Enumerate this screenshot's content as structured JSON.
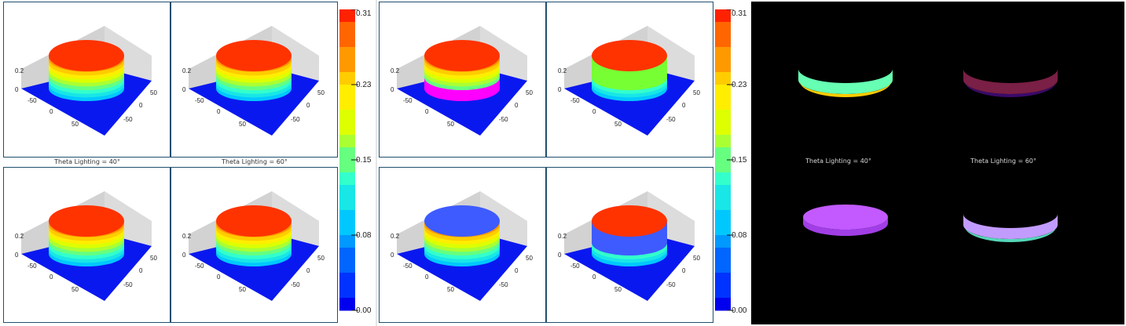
{
  "captions": {
    "left": "Theta Lighting = 40°",
    "right": "Theta Lighting = 60°"
  },
  "chart_data": [
    {
      "type": "surface3d",
      "panel": "group-1",
      "subplots": [
        "top-left",
        "top-right",
        "bottom-left",
        "bottom-right"
      ],
      "z_ticks": [
        "0",
        "0.2"
      ],
      "x_ticks": [
        "-50",
        "0",
        "50"
      ],
      "y_ticks": [
        "50",
        "0",
        "-50"
      ],
      "colorbar": {
        "ticks": [
          "0.31",
          "0.23",
          "0.15",
          "0.08",
          "0.00"
        ],
        "range": [
          0,
          0.31
        ]
      }
    },
    {
      "type": "surface3d",
      "panel": "group-2",
      "subplots": [
        "top-left",
        "top-right",
        "bottom-left",
        "bottom-right"
      ],
      "z_ticks": [
        "0",
        "0.2"
      ],
      "x_ticks": [
        "-50",
        "0",
        "50"
      ],
      "y_ticks": [
        "50",
        "0",
        "-50"
      ],
      "colorbar": {
        "ticks": [
          "0.31",
          "0.23",
          "0.15",
          "0.08",
          "0.00"
        ],
        "range": [
          0,
          0.31
        ]
      }
    },
    {
      "type": "surface3d",
      "panel": "group-3-dark",
      "subplots": [
        "top-left",
        "top-right",
        "bottom-left",
        "bottom-right"
      ]
    }
  ],
  "colors": {
    "top_red": "#ff3300",
    "floor_blue": "#0a18f0",
    "wall_grey": "#d2d2d2",
    "frame": "#1f4f6e",
    "magenta": "#ff00ff",
    "green": "#77ff33",
    "steel_blue": "#3e5bff",
    "violet": "#c25aff"
  }
}
